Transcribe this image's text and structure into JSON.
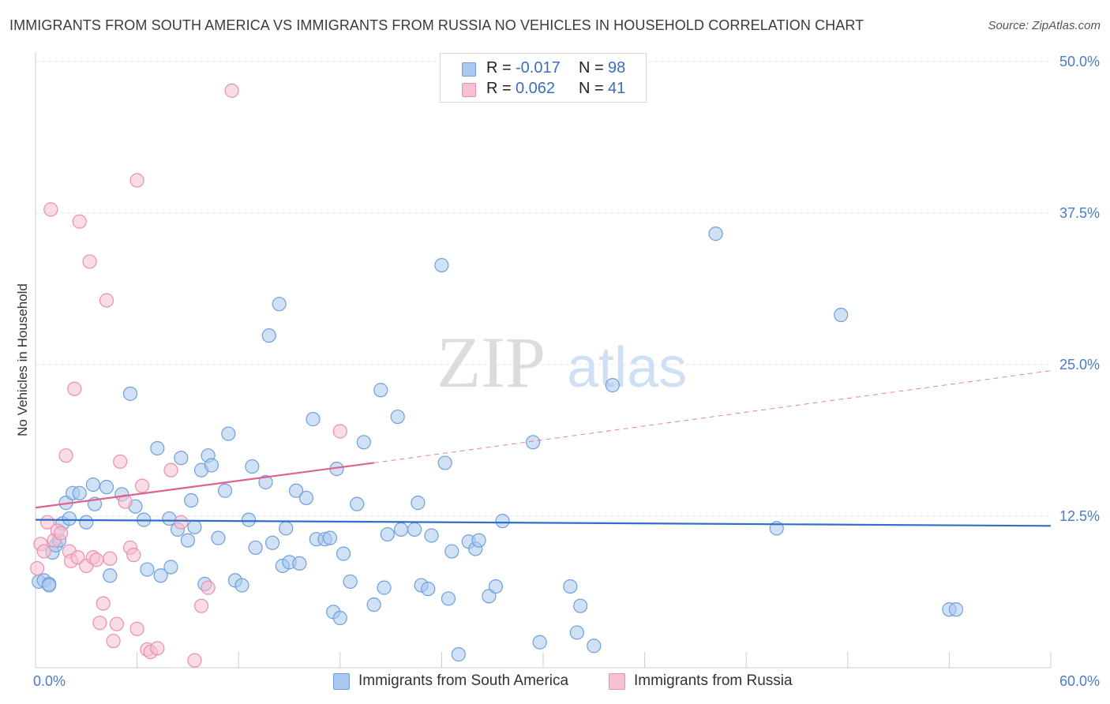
{
  "header": {
    "title": "IMMIGRANTS FROM SOUTH AMERICA VS IMMIGRANTS FROM RUSSIA NO VEHICLES IN HOUSEHOLD CORRELATION CHART",
    "source": "Source: ZipAtlas.com"
  },
  "watermark": {
    "zip": "ZIP",
    "atlas": "atlas"
  },
  "legend": {
    "rows": [
      {
        "r_label": "R =",
        "r_value": "-0.017",
        "n_label": "N =",
        "n_value": "98",
        "color": "#aac8ef",
        "edge": "#6f9fdc"
      },
      {
        "r_label": "R =",
        "r_value": "0.062",
        "n_label": "N =",
        "n_value": "41",
        "color": "#f6c0d2",
        "edge": "#ea8fae"
      }
    ]
  },
  "bottom_legend": {
    "items": [
      {
        "label": "Immigrants from South America",
        "color": "#aac8ef",
        "edge": "#6f9fdc"
      },
      {
        "label": "Immigrants from Russia",
        "color": "#f6c0d2",
        "edge": "#ea8fae"
      }
    ]
  },
  "chart_data": {
    "type": "scatter",
    "title": "IMMIGRANTS FROM SOUTH AMERICA VS IMMIGRANTS FROM RUSSIA NO VEHICLES IN HOUSEHOLD CORRELATION CHART",
    "xlabel": "",
    "ylabel": "No Vehicles in Household",
    "xlim": [
      0,
      60
    ],
    "ylim": [
      0,
      50
    ],
    "x_tick_labels": [
      "0.0%",
      "60.0%"
    ],
    "y_ticks": [
      12.5,
      25.0,
      37.5,
      50.0
    ],
    "y_tick_labels": [
      "12.5%",
      "25.0%",
      "37.5%",
      "50.0%"
    ],
    "grid": true,
    "legend_position": "top-center",
    "series": [
      {
        "name": "Immigrants from South America",
        "color": "#6f9fdc",
        "fill": "#aac8ef",
        "trend": {
          "x": [
            0,
            60
          ],
          "y": [
            12.2,
            11.7
          ],
          "color": "#2f6fc8"
        },
        "points": [
          [
            0.2,
            7.1
          ],
          [
            0.5,
            7.2
          ],
          [
            0.8,
            6.9
          ],
          [
            1.0,
            9.5
          ],
          [
            1.2,
            10.1
          ],
          [
            1.4,
            10.5
          ],
          [
            1.6,
            11.9
          ],
          [
            1.8,
            13.6
          ],
          [
            2.0,
            12.3
          ],
          [
            2.2,
            14.4
          ],
          [
            2.6,
            14.4
          ],
          [
            3.0,
            12.0
          ],
          [
            3.4,
            15.1
          ],
          [
            3.5,
            13.5
          ],
          [
            4.2,
            14.9
          ],
          [
            4.4,
            7.6
          ],
          [
            5.1,
            14.3
          ],
          [
            5.6,
            22.6
          ],
          [
            5.9,
            13.3
          ],
          [
            6.4,
            12.2
          ],
          [
            6.6,
            8.1
          ],
          [
            7.2,
            18.1
          ],
          [
            7.4,
            7.6
          ],
          [
            7.9,
            12.3
          ],
          [
            8.0,
            8.3
          ],
          [
            8.4,
            11.4
          ],
          [
            8.6,
            17.3
          ],
          [
            9.0,
            10.5
          ],
          [
            9.2,
            13.8
          ],
          [
            9.4,
            11.6
          ],
          [
            9.8,
            16.3
          ],
          [
            10.0,
            6.9
          ],
          [
            10.2,
            17.5
          ],
          [
            10.4,
            16.7
          ],
          [
            10.8,
            10.7
          ],
          [
            11.2,
            14.6
          ],
          [
            11.4,
            19.3
          ],
          [
            11.8,
            7.2
          ],
          [
            12.2,
            6.8
          ],
          [
            12.6,
            12.2
          ],
          [
            12.8,
            16.6
          ],
          [
            13.0,
            9.9
          ],
          [
            13.6,
            15.3
          ],
          [
            13.8,
            27.4
          ],
          [
            14.0,
            10.3
          ],
          [
            14.4,
            30.0
          ],
          [
            14.6,
            8.4
          ],
          [
            14.8,
            11.5
          ],
          [
            15.0,
            8.7
          ],
          [
            15.4,
            14.6
          ],
          [
            15.6,
            8.6
          ],
          [
            16.0,
            14.0
          ],
          [
            16.4,
            20.5
          ],
          [
            16.6,
            10.6
          ],
          [
            17.1,
            10.6
          ],
          [
            17.4,
            10.7
          ],
          [
            17.6,
            4.6
          ],
          [
            17.8,
            16.4
          ],
          [
            18.0,
            4.1
          ],
          [
            18.2,
            9.4
          ],
          [
            18.6,
            7.1
          ],
          [
            19.0,
            13.5
          ],
          [
            19.4,
            18.6
          ],
          [
            20.0,
            5.2
          ],
          [
            20.4,
            22.9
          ],
          [
            20.6,
            6.6
          ],
          [
            20.8,
            11.0
          ],
          [
            21.4,
            20.7
          ],
          [
            21.6,
            11.4
          ],
          [
            22.4,
            11.4
          ],
          [
            22.6,
            13.6
          ],
          [
            22.8,
            6.8
          ],
          [
            23.2,
            6.5
          ],
          [
            23.4,
            10.9
          ],
          [
            24.0,
            33.2
          ],
          [
            24.2,
            16.9
          ],
          [
            24.4,
            5.7
          ],
          [
            24.6,
            9.6
          ],
          [
            25.0,
            1.1
          ],
          [
            25.6,
            10.4
          ],
          [
            26.0,
            9.8
          ],
          [
            26.2,
            10.5
          ],
          [
            26.8,
            5.9
          ],
          [
            27.2,
            6.7
          ],
          [
            27.6,
            12.1
          ],
          [
            29.4,
            18.6
          ],
          [
            29.8,
            2.1
          ],
          [
            31.6,
            6.7
          ],
          [
            32.0,
            2.9
          ],
          [
            32.2,
            5.1
          ],
          [
            33.0,
            1.8
          ],
          [
            34.1,
            23.3
          ],
          [
            40.2,
            35.8
          ],
          [
            43.8,
            11.5
          ],
          [
            47.6,
            29.1
          ],
          [
            54.0,
            4.8
          ],
          [
            54.4,
            4.8
          ],
          [
            0.8,
            6.8
          ]
        ]
      },
      {
        "name": "Immigrants from Russia",
        "color": "#ea8fae",
        "fill": "#f6c0d2",
        "trend": {
          "solid": {
            "x": [
              0,
              20
            ],
            "y": [
              13.2,
              16.9
            ]
          },
          "dashed": {
            "x": [
              20,
              60
            ],
            "y": [
              16.9,
              24.5
            ]
          },
          "color": "#e0608e"
        },
        "points": [
          [
            0.1,
            8.2
          ],
          [
            0.3,
            10.2
          ],
          [
            0.5,
            9.6
          ],
          [
            0.7,
            12.0
          ],
          [
            0.9,
            37.8
          ],
          [
            1.1,
            10.5
          ],
          [
            1.3,
            11.3
          ],
          [
            1.5,
            11.1
          ],
          [
            1.8,
            17.5
          ],
          [
            2.0,
            9.6
          ],
          [
            2.1,
            8.8
          ],
          [
            2.3,
            23.0
          ],
          [
            2.5,
            9.1
          ],
          [
            2.6,
            36.8
          ],
          [
            3.0,
            8.4
          ],
          [
            3.2,
            33.5
          ],
          [
            3.4,
            9.1
          ],
          [
            3.6,
            8.9
          ],
          [
            3.8,
            3.7
          ],
          [
            4.0,
            5.3
          ],
          [
            4.2,
            30.3
          ],
          [
            4.4,
            9.0
          ],
          [
            4.6,
            2.2
          ],
          [
            4.8,
            3.6
          ],
          [
            5.0,
            17.0
          ],
          [
            5.3,
            13.7
          ],
          [
            5.6,
            9.9
          ],
          [
            5.8,
            9.3
          ],
          [
            6.0,
            40.2
          ],
          [
            6.3,
            15.0
          ],
          [
            6.6,
            1.5
          ],
          [
            6.8,
            1.3
          ],
          [
            7.2,
            1.6
          ],
          [
            8.0,
            16.3
          ],
          [
            8.6,
            12.0
          ],
          [
            9.4,
            0.6
          ],
          [
            9.8,
            5.1
          ],
          [
            10.2,
            6.6
          ],
          [
            11.6,
            47.6
          ],
          [
            18.0,
            19.5
          ],
          [
            6.0,
            3.2
          ]
        ]
      }
    ]
  }
}
